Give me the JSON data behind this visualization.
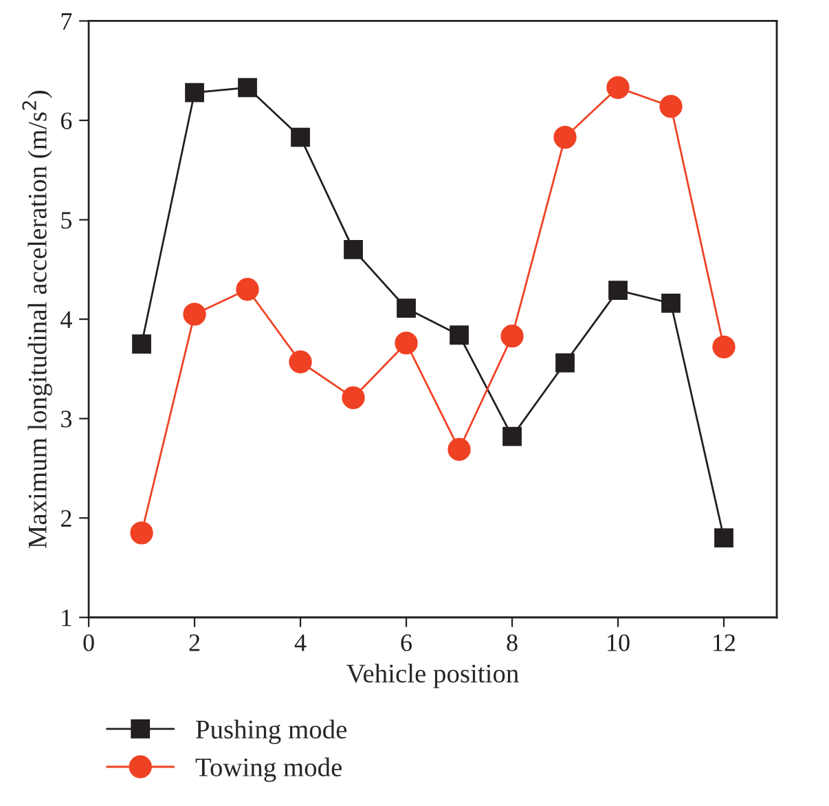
{
  "chart_data": {
    "type": "line",
    "xlabel": "Vehicle position",
    "ylabel": "Maximum longitudinal acceleration (m/s$^{2}$)",
    "x": [
      1,
      2,
      3,
      4,
      5,
      6,
      7,
      8,
      9,
      10,
      11,
      12
    ],
    "series": [
      {
        "name": "Pushing mode",
        "color": "#231f20",
        "marker": "square",
        "values": [
          3.75,
          6.28,
          6.33,
          5.83,
          4.7,
          4.11,
          3.84,
          2.82,
          3.56,
          4.29,
          4.16,
          1.8
        ]
      },
      {
        "name": "Towing mode",
        "color": "#ef4123",
        "marker": "circle",
        "values": [
          1.85,
          4.05,
          4.3,
          3.57,
          3.21,
          3.76,
          2.69,
          3.83,
          5.83,
          6.33,
          6.14,
          3.72
        ]
      }
    ],
    "xlim": [
      0,
      13
    ],
    "xticks": [
      0,
      2,
      4,
      6,
      8,
      10,
      12
    ],
    "ylim": [
      1,
      7
    ],
    "yticks": [
      1,
      2,
      3,
      4,
      5,
      6,
      7
    ],
    "grid": false,
    "legend": "bottom left",
    "line_style": "solid"
  }
}
